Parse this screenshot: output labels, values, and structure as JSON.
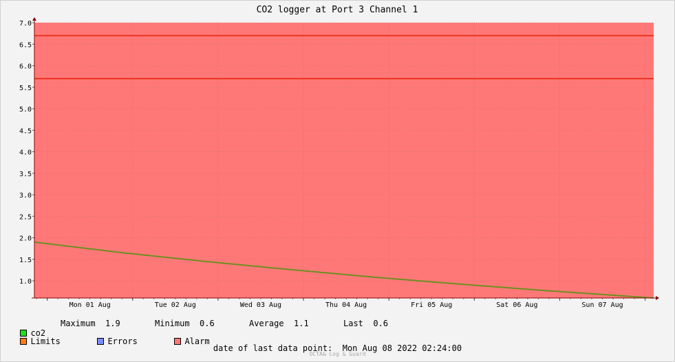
{
  "colors": {
    "alarm_fill": "#ff7878",
    "limit_line": "#e8331f",
    "co2_line": "#6b8f1f",
    "axis": "#8b0000",
    "co2_swatch": "#22dd22",
    "limits_swatch": "#ff7a1a",
    "errors_swatch": "#7a8cff",
    "alarm_swatch": "#ff7878"
  },
  "chart_data": {
    "type": "line",
    "title": "CO2 logger at Port 3 Channel 1",
    "xlabel": "",
    "ylabel": "",
    "x_tick_labels": [
      "Mon 01 Aug",
      "Tue 02 Aug",
      "Wed 03 Aug",
      "Thu 04 Aug",
      "Fri 05 Aug",
      "Sat 06 Aug",
      "Sun 07 Aug"
    ],
    "x_range": [
      "2022-07-31 20:24",
      "2022-08-08 02:24"
    ],
    "y_tick_labels": [
      "1.0",
      "1.5",
      "2.0",
      "2.5",
      "3.0",
      "3.5",
      "4.0",
      "4.5",
      "5.0",
      "5.5",
      "6.0",
      "6.5",
      "7.0"
    ],
    "ylim": [
      0.6,
      7.0
    ],
    "grid": true,
    "alarm_band": [
      0.6,
      7.0
    ],
    "limits": [
      5.7,
      6.7
    ],
    "series": [
      {
        "name": "co2",
        "x": [
          "2022-07-31 20:24",
          "2022-08-01 20:24",
          "2022-08-02 20:24",
          "2022-08-03 20:24",
          "2022-08-04 20:24",
          "2022-08-05 20:24",
          "2022-08-06 20:24",
          "2022-08-08 02:24"
        ],
        "y": [
          1.9,
          1.66,
          1.45,
          1.26,
          1.08,
          0.92,
          0.77,
          0.6
        ]
      }
    ]
  },
  "legend": {
    "co2_label": "co2",
    "maximum_label": "Maximum",
    "maximum_value": "1.9",
    "minimum_label": "Minimum",
    "minimum_value": "0.6",
    "average_label": "Average",
    "average_value": "1.1",
    "last_label": "Last",
    "last_value": "0.6",
    "limits_label": "Limits",
    "errors_label": "Errors",
    "alarm_label": "Alarm"
  },
  "footer": {
    "last_point": "date of last data point:  Mon Aug 08 2022 02:24:00",
    "brand": "OCTA& Log & Guard"
  }
}
